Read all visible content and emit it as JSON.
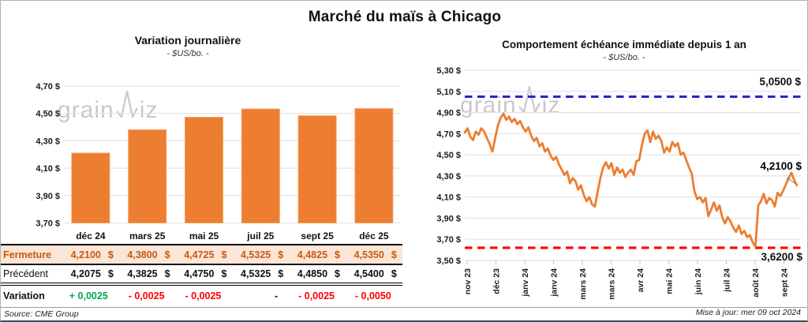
{
  "card": {
    "title": "Marché du maïs à Chicago",
    "source": "Source: CME Group",
    "updated": "Mise à jour: mer 09 oct 2024",
    "watermark_pre": "grain",
    "watermark_post": "iz"
  },
  "colors": {
    "orange": "#ED7D31",
    "orange_border": "#F2A15E",
    "blue": "#2626C9",
    "red": "#FF0000",
    "green": "#00A651",
    "brown": "#C55A11",
    "peach": "#FBE5D6",
    "grid": "#E4E4E4",
    "watermark": "#C9C9C9",
    "black": "#111111"
  },
  "chart_data": [
    {
      "type": "bar",
      "title": "Variation  journalière",
      "subtitle": "- $US/bo. -",
      "categories": [
        "déc 24",
        "mars 25",
        "mai 25",
        "juil 25",
        "sept 25",
        "déc 25"
      ],
      "values": [
        4.21,
        4.38,
        4.4725,
        4.5325,
        4.4825,
        4.535
      ],
      "ylim": [
        3.7,
        4.8
      ],
      "ytick_values": [
        4.7,
        4.5,
        4.3,
        4.1,
        3.9,
        3.7
      ],
      "ytick_labels": [
        "4,70 $",
        "4,50 $",
        "4,30 $",
        "4,10 $",
        "3,90 $",
        "3,70 $"
      ],
      "grid": true,
      "legend": "none"
    },
    {
      "type": "line",
      "title": "Comportement  échéance  immédiate  depuis 1 an",
      "subtitle": "- $US/bo. -",
      "x_tick_labels": [
        "nov 23",
        "déc 23",
        "janv 24",
        "janv 24",
        "mars 24",
        "mars 24",
        "avr 24",
        "mai 24",
        "juin 24",
        "juil 24",
        "août 24",
        "sept 24"
      ],
      "ylim": [
        3.5,
        5.3
      ],
      "ytick_values": [
        5.3,
        5.1,
        4.9,
        4.7,
        4.5,
        4.3,
        4.1,
        3.9,
        3.7,
        3.5
      ],
      "ytick_labels": [
        "5,30 $",
        "5,10 $",
        "4,90 $",
        "4,70 $",
        "4,50 $",
        "4,30 $",
        "4,10 $",
        "3,90 $",
        "3,70 $",
        "3,50 $"
      ],
      "grid": true,
      "ref_lines": [
        {
          "value": 5.05,
          "label": "5,0500 $",
          "color": "#2626C9"
        },
        {
          "value": 3.62,
          "label": "3,6200 $",
          "color": "#FF0000"
        }
      ],
      "last_value": 4.21,
      "last_label": "4,2100 $",
      "values": [
        4.71,
        4.75,
        4.67,
        4.64,
        4.72,
        4.69,
        4.75,
        4.72,
        4.66,
        4.6,
        4.53,
        4.66,
        4.78,
        4.85,
        4.89,
        4.83,
        4.86,
        4.81,
        4.84,
        4.79,
        4.82,
        4.76,
        4.72,
        4.76,
        4.68,
        4.63,
        4.66,
        4.58,
        4.61,
        4.53,
        4.56,
        4.49,
        4.45,
        4.48,
        4.41,
        4.36,
        4.31,
        4.34,
        4.23,
        4.28,
        4.25,
        4.17,
        4.21,
        4.12,
        4.06,
        4.1,
        4.03,
        4.01,
        4.15,
        4.28,
        4.38,
        4.43,
        4.37,
        4.42,
        4.31,
        4.38,
        4.33,
        4.36,
        4.29,
        4.33,
        4.36,
        4.31,
        4.44,
        4.45,
        4.59,
        4.7,
        4.73,
        4.62,
        4.72,
        4.65,
        4.68,
        4.63,
        4.52,
        4.57,
        4.53,
        4.62,
        4.58,
        4.61,
        4.5,
        4.52,
        4.45,
        4.38,
        4.32,
        4.15,
        4.08,
        4.1,
        4.05,
        4.09,
        3.92,
        3.98,
        4.05,
        3.97,
        4.02,
        3.91,
        3.85,
        3.91,
        3.87,
        3.81,
        3.77,
        3.83,
        3.75,
        3.78,
        3.72,
        3.74,
        3.67,
        3.63,
        4.02,
        4.06,
        4.13,
        4.04,
        4.09,
        4.07,
        4.01,
        4.14,
        4.11,
        4.16,
        4.22,
        4.28,
        4.33,
        4.26,
        4.21
      ]
    }
  ],
  "table": {
    "columns": [
      "déc 24",
      "mars 25",
      "mai 25",
      "juil 25",
      "sept 25",
      "déc 25"
    ],
    "currency": "$",
    "rows": [
      {
        "label": "Fermeture",
        "style": "r0",
        "values": [
          "4,2100",
          "4,3800",
          "4,4725",
          "4,5325",
          "4,4825",
          "4,5350"
        ]
      },
      {
        "label": "Précédent",
        "style": "r1",
        "values": [
          "4,2075",
          "4,3825",
          "4,4750",
          "4,5325",
          "4,4850",
          "4,5400"
        ]
      },
      {
        "label": "Variation",
        "style": "r2",
        "values": [
          "+ 0,0025",
          "- 0,0025",
          "- 0,0025",
          "-",
          "- 0,0025",
          "- 0,0050"
        ],
        "value_colors": [
          "green",
          "red",
          "red",
          "black",
          "red",
          "red"
        ]
      }
    ]
  }
}
